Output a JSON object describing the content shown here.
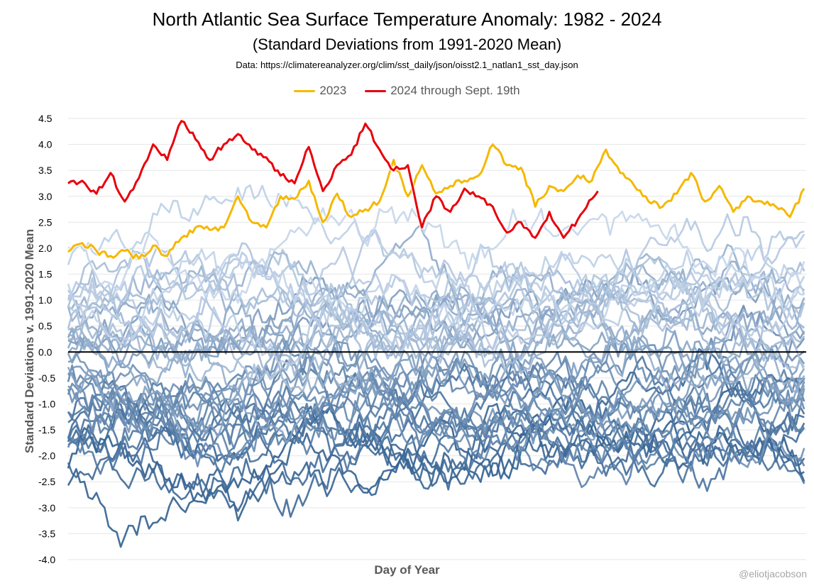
{
  "header": {
    "title": "North Atlantic Sea Surface Temperature Anomaly: 1982 - 2024",
    "subtitle": "(Standard Deviations from 1991-2020 Mean)",
    "source": "Data: https://climatereanalyzer.org/clim/sst_daily/json/oisst2.1_natlan1_sst_day.json"
  },
  "watermark": "@eliotjacobson",
  "colors": {
    "y2023": "#f5b800",
    "y2024": "#e8000b",
    "zero_line": "#000000",
    "gridline": "#e6e6e6",
    "historical_light": "#c5d5ea",
    "historical_dark": "#2e5d8e"
  },
  "chart_data": {
    "type": "line",
    "title": "North Atlantic Sea Surface Temperature Anomaly: 1982 - 2024",
    "subtitle": "(Standard Deviations from 1991-2020 Mean)",
    "xlabel": "Day of Year",
    "ylabel": "Standard Deviations v. 1991-2020 Mean",
    "xlim": [
      1,
      366
    ],
    "ylim": [
      -4.0,
      4.5
    ],
    "yticks": [
      "4.5",
      "4.0",
      "3.5",
      "3.0",
      "2.5",
      "2.0",
      "1.5",
      "1.0",
      "0.5",
      "0.0",
      "-0.5",
      "-1.0",
      "-1.5",
      "-2.0",
      "-2.5",
      "-3.0",
      "-3.5",
      "-4.0"
    ],
    "grid": "horizontal",
    "legend_position": "top-center",
    "legend": [
      "2023",
      "2024 through Sept. 19th"
    ],
    "series": [
      {
        "name": "2023",
        "x": [
          1,
          8,
          15,
          22,
          29,
          36,
          43,
          50,
          57,
          64,
          71,
          78,
          85,
          92,
          99,
          106,
          113,
          120,
          127,
          134,
          141,
          148,
          155,
          162,
          169,
          176,
          183,
          190,
          197,
          204,
          211,
          218,
          225,
          232,
          239,
          246,
          253,
          260,
          267,
          274,
          281,
          288,
          295,
          302,
          309,
          316,
          323,
          330,
          337,
          344,
          351,
          358,
          365
        ],
        "values": [
          1.93,
          2.1,
          1.95,
          1.85,
          1.95,
          1.8,
          2.05,
          1.85,
          2.2,
          2.4,
          2.35,
          2.4,
          3.0,
          2.5,
          2.4,
          3.0,
          2.95,
          3.3,
          2.5,
          3.05,
          2.6,
          2.75,
          2.9,
          3.7,
          3.0,
          3.6,
          3.05,
          3.2,
          3.3,
          3.4,
          4.0,
          3.6,
          3.55,
          2.8,
          3.2,
          3.1,
          3.4,
          3.3,
          3.9,
          3.45,
          3.2,
          2.9,
          2.8,
          3.05,
          3.45,
          2.9,
          3.2,
          2.7,
          3.0,
          2.9,
          2.8,
          2.6,
          3.15
        ]
      },
      {
        "name": "2024 through Sept. 19th",
        "x": [
          1,
          8,
          15,
          22,
          29,
          36,
          43,
          50,
          57,
          64,
          71,
          78,
          85,
          92,
          99,
          106,
          113,
          120,
          127,
          134,
          141,
          148,
          155,
          162,
          169,
          176,
          183,
          190,
          197,
          204,
          211,
          218,
          225,
          232,
          239,
          246,
          253,
          263
        ],
        "values": [
          3.25,
          3.3,
          3.05,
          3.45,
          2.9,
          3.35,
          4.0,
          3.7,
          4.45,
          4.1,
          3.7,
          4.0,
          4.2,
          3.9,
          3.75,
          3.4,
          3.25,
          3.95,
          3.1,
          3.6,
          3.8,
          4.4,
          3.9,
          3.5,
          3.6,
          2.4,
          3.0,
          2.7,
          3.15,
          3.0,
          2.8,
          2.3,
          2.5,
          2.2,
          2.7,
          2.2,
          2.55,
          3.1
        ]
      }
    ],
    "historical_years": {
      "range": "1982-2022",
      "style": "blue gradient lines, darker for earlier years, lighter for more recent years",
      "baseline_levels": [
        -2.2,
        -2.5,
        -2.0,
        -1.6,
        -1.8,
        -1.3,
        -1.5,
        -1.8,
        -1.2,
        -1.6,
        -1.0,
        -1.4,
        -1.7,
        -0.8,
        -1.1,
        -0.6,
        -0.9,
        -0.5,
        -0.3,
        -0.7,
        0.0,
        -0.2,
        0.3,
        0.1,
        0.5,
        0.2,
        0.7,
        0.4,
        0.9,
        0.6,
        0.3,
        1.1,
        0.8,
        0.5,
        1.2,
        0.9,
        1.4,
        1.0,
        1.6,
        1.2,
        1.9
      ]
    }
  }
}
